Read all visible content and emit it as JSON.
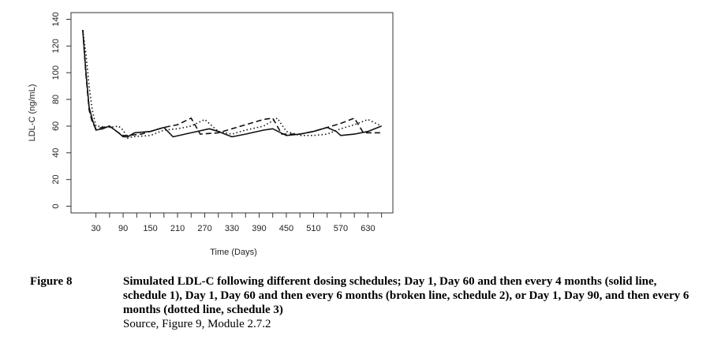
{
  "chart_data": {
    "type": "line",
    "xlabel": "Time (Days)",
    "ylabel": "LDL-C (ng/mL)",
    "xlim": [
      -25,
      685
    ],
    "ylim": [
      -5,
      145
    ],
    "x_ticks": [
      30,
      60,
      90,
      120,
      150,
      180,
      210,
      240,
      270,
      300,
      330,
      360,
      390,
      420,
      450,
      480,
      510,
      540,
      570,
      600,
      630,
      660
    ],
    "x_tick_labels": [
      "30",
      "",
      "90",
      "",
      "150",
      "",
      "210",
      "",
      "270",
      "",
      "330",
      "",
      "390",
      "",
      "450",
      "",
      "510",
      "",
      "570",
      "",
      "630",
      ""
    ],
    "y_ticks": [
      0,
      20,
      40,
      60,
      80,
      100,
      120,
      140
    ],
    "y_tick_labels": [
      "0",
      "20",
      "40",
      "60",
      "80",
      "100",
      "120",
      "140"
    ],
    "grid": false,
    "series": [
      {
        "style": "solid",
        "x": [
          1,
          8,
          15,
          22,
          30,
          45,
          60,
          80,
          90,
          100,
          115,
          150,
          180,
          200,
          240,
          280,
          300,
          330,
          360,
          400,
          420,
          450,
          480,
          510,
          540,
          560,
          570,
          600,
          630,
          660
        ],
        "y": [
          132,
          100,
          74,
          65,
          57,
          58,
          60,
          55,
          52,
          52,
          55,
          56,
          59,
          52,
          55,
          58,
          56,
          52,
          54,
          57,
          58,
          53,
          54,
          56,
          59,
          56,
          53,
          54,
          56,
          60
        ]
      },
      {
        "style": "dashed",
        "x": [
          1,
          8,
          15,
          22,
          30,
          45,
          60,
          80,
          90,
          100,
          130,
          160,
          180,
          210,
          240,
          260,
          300,
          330,
          360,
          400,
          420,
          440,
          480,
          510,
          540,
          570,
          600,
          620,
          640,
          660
        ],
        "y": [
          132,
          98,
          72,
          63,
          58,
          59,
          60,
          55,
          53,
          53,
          54,
          57,
          59,
          61,
          66,
          54,
          55,
          58,
          61,
          65,
          66,
          54,
          54,
          56,
          59,
          62,
          66,
          55,
          55,
          55
        ]
      },
      {
        "style": "dotted",
        "x": [
          1,
          8,
          15,
          22,
          30,
          60,
          80,
          90,
          100,
          110,
          150,
          180,
          210,
          240,
          270,
          300,
          330,
          360,
          400,
          430,
          450,
          480,
          510,
          540,
          570,
          600,
          630,
          660
        ],
        "y": [
          132,
          114,
          90,
          72,
          60,
          59,
          60,
          57,
          51,
          52,
          53,
          57,
          58,
          60,
          65,
          56,
          54,
          57,
          60,
          66,
          56,
          53,
          53,
          54,
          58,
          61,
          65,
          60
        ]
      }
    ]
  },
  "caption": {
    "figure_label": "Figure 8",
    "text": "Simulated LDL-C following different dosing schedules; Day 1, Day 60 and then every 4 months (solid line, schedule 1), Day 1, Day 60 and then every 6 months (broken line, schedule 2), or Day 1, Day 90, and then every 6 months (dotted line, schedule 3)",
    "source": "Source, Figure 9, Module 2.7.2"
  }
}
